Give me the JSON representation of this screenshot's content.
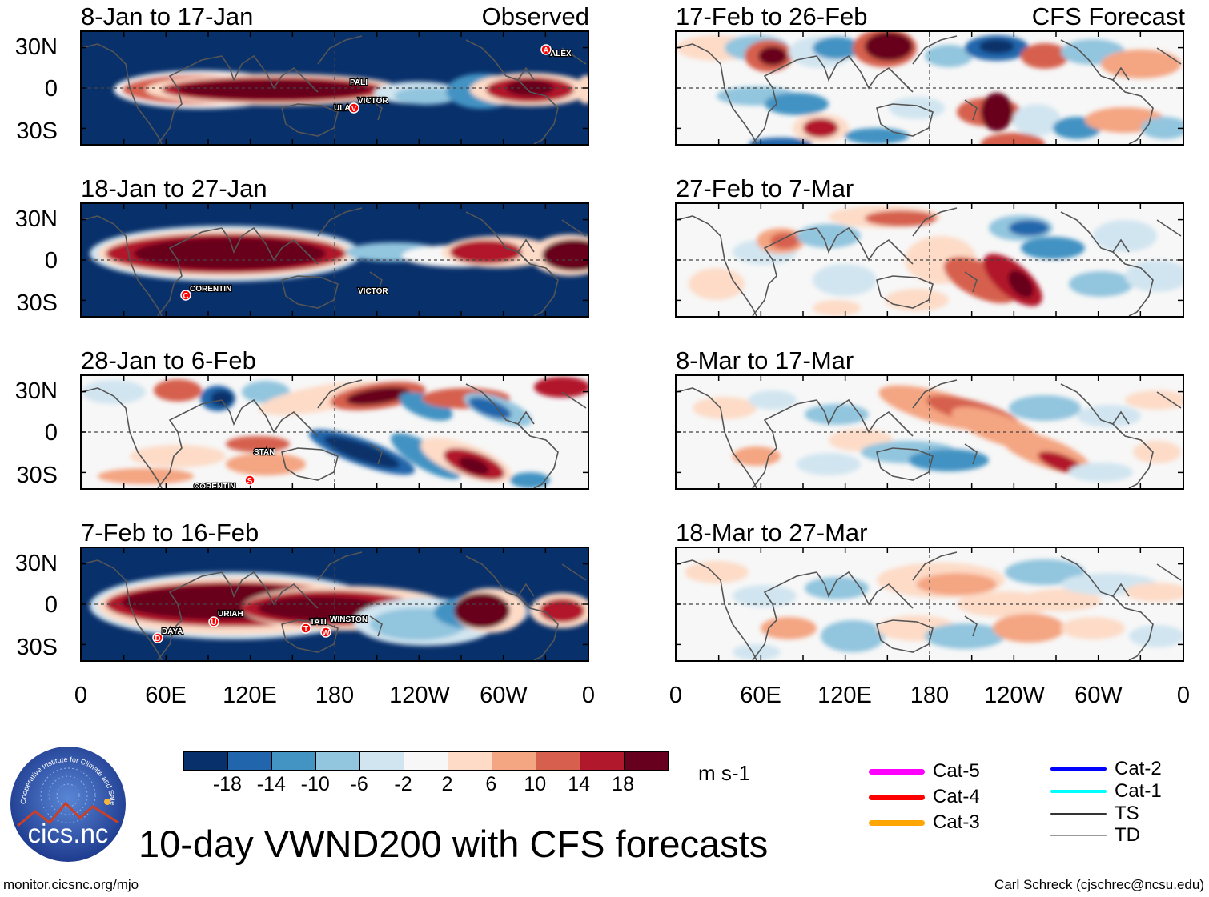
{
  "chart_data": {
    "type": "heatmap",
    "title": "10-day VWND200 with CFS forecasts",
    "variable": "VWND200",
    "units": "m s-1",
    "yticks": [
      "30N",
      "0",
      "30S"
    ],
    "xticks": [
      "0",
      "60E",
      "120E",
      "180",
      "120W",
      "60W",
      "0"
    ],
    "colorbar": {
      "ticks": [
        "-18",
        "-14",
        "-10",
        "-6",
        "-2",
        "2",
        "6",
        "10",
        "14",
        "18"
      ],
      "colors": [
        "#08306b",
        "#2166ac",
        "#4393c3",
        "#92c5de",
        "#d1e5f0",
        "#f7f7f7",
        "#fddbc7",
        "#f4a582",
        "#d6604d",
        "#b2182b",
        "#67001f"
      ]
    },
    "columns": [
      {
        "header": "Observed",
        "panels": [
          {
            "period": "8-Jan to 17-Jan",
            "storms": [
              {
                "name": "ALEX",
                "symbol": "A"
              },
              {
                "name": "PALI",
                "symbol": ""
              },
              {
                "name": "ULA",
                "symbol": ""
              },
              {
                "name": "VICTOR",
                "symbol": "V"
              }
            ]
          },
          {
            "period": "18-Jan to 27-Jan",
            "storms": [
              {
                "name": "CORENTIN",
                "symbol": "C"
              },
              {
                "name": "VICTOR",
                "symbol": ""
              }
            ]
          },
          {
            "period": "28-Jan to 6-Feb",
            "storms": [
              {
                "name": "STAN",
                "symbol": "S"
              },
              {
                "name": "CORENTIN",
                "symbol": ""
              }
            ]
          },
          {
            "period": "7-Feb to 16-Feb",
            "storms": [
              {
                "name": "URIAH",
                "symbol": "U"
              },
              {
                "name": "DAYA",
                "symbol": "D"
              },
              {
                "name": "TATI",
                "symbol": "T"
              },
              {
                "name": "WINSTON",
                "symbol": "W"
              }
            ]
          }
        ]
      },
      {
        "header": "CFS Forecast",
        "panels": [
          {
            "period": "17-Feb to 26-Feb",
            "storms": []
          },
          {
            "period": "27-Feb to 7-Mar",
            "storms": []
          },
          {
            "period": "8-Mar to 17-Mar",
            "storms": []
          },
          {
            "period": "18-Mar to 27-Mar",
            "storms": []
          }
        ]
      }
    ],
    "legend": [
      {
        "label": "Cat-5",
        "color": "#ff00ff"
      },
      {
        "label": "Cat-4",
        "color": "#ff0000"
      },
      {
        "label": "Cat-3",
        "color": "#ffa500"
      },
      {
        "label": "Cat-2",
        "color": "#0000ff"
      },
      {
        "label": "Cat-1",
        "color": "#00ffff"
      },
      {
        "label": "TS",
        "color": "#333333"
      },
      {
        "label": "TD",
        "color": "#999999"
      }
    ]
  },
  "logo": {
    "text": "cics.nc",
    "ring_text": "Cooperative Institute for Climate and Satellites"
  },
  "footer": {
    "left": "monitor.cicsnc.org/mjo",
    "right": "Carl Schreck (cjschrec@ncsu.edu)"
  }
}
